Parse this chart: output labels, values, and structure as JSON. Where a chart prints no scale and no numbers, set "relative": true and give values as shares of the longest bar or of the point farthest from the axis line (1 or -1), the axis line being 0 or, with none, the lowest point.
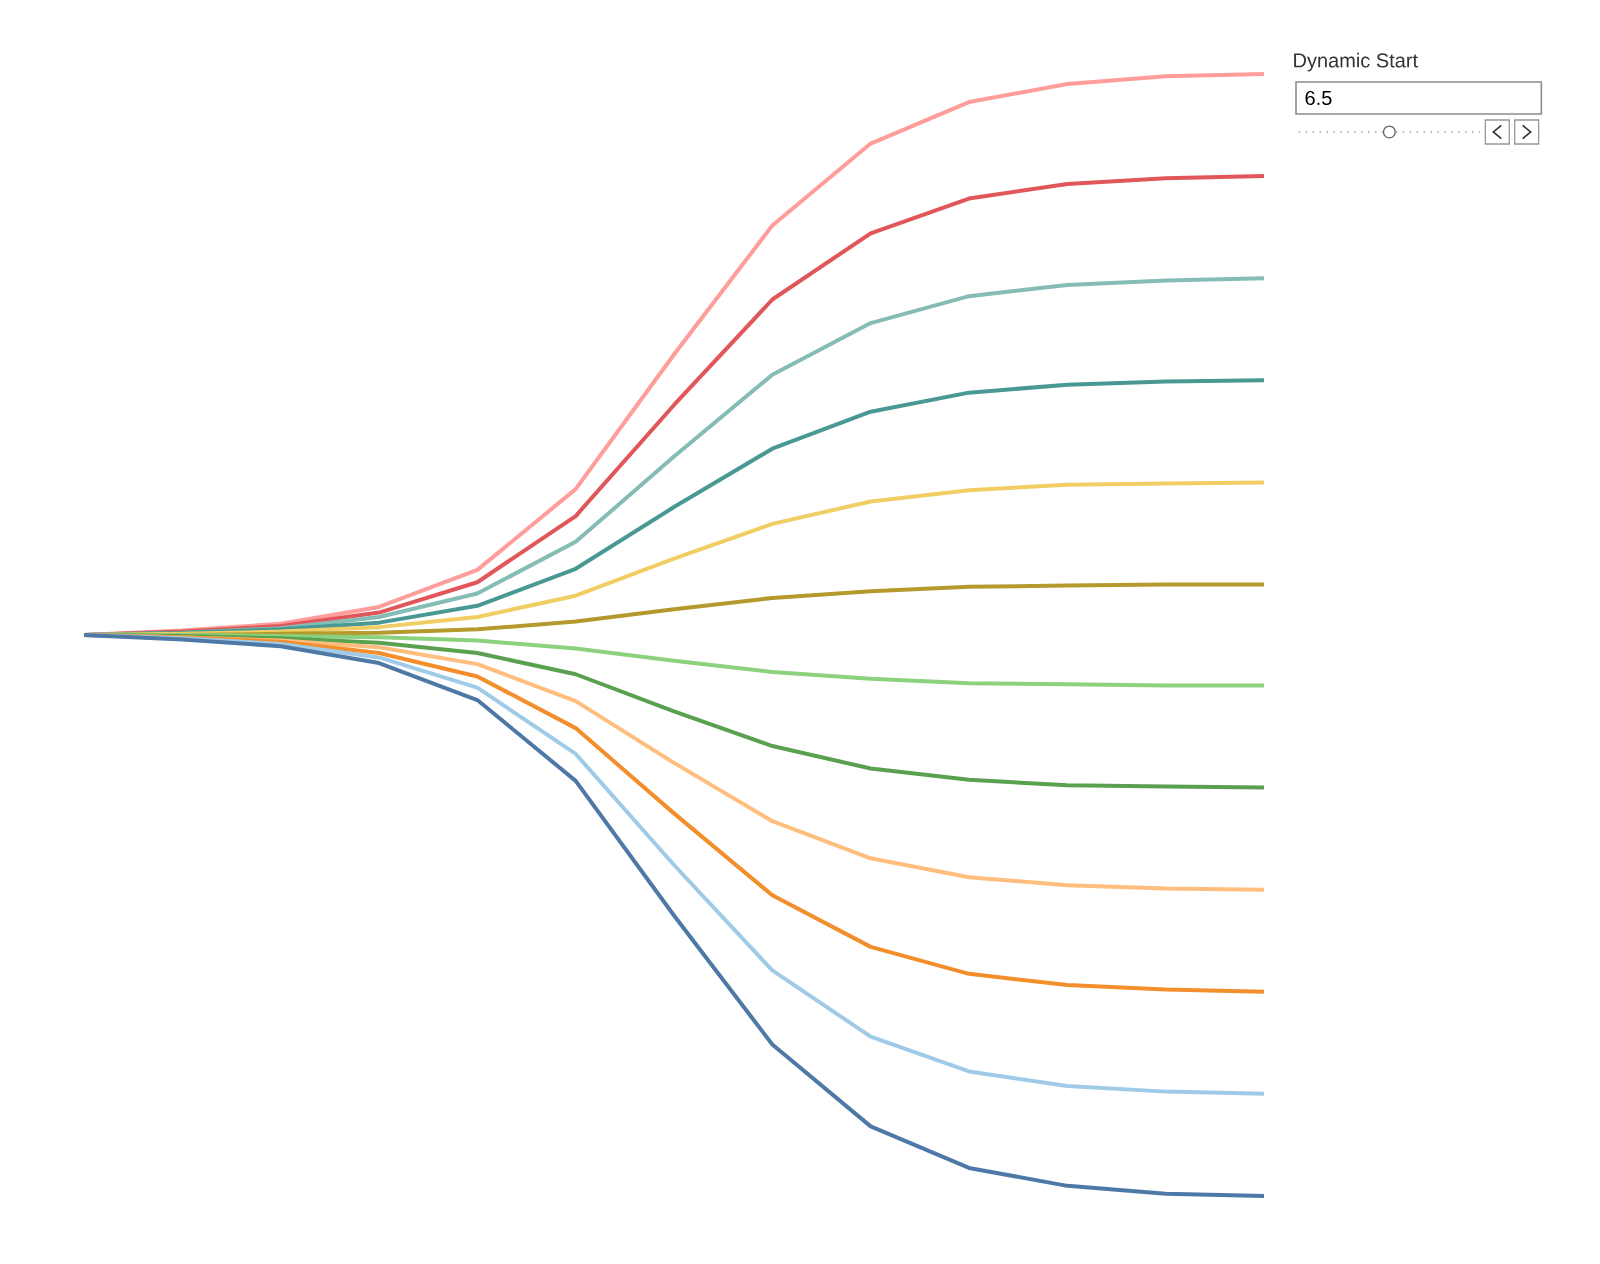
{
  "chart_data": {
    "type": "line",
    "relative": true,
    "annotations": [
      "Dynamic Start",
      "6.5"
    ],
    "categories": [
      null,
      null,
      null,
      null,
      null,
      null,
      null,
      null,
      null,
      null,
      null,
      null,
      null
    ],
    "series": [
      {
        "color": "#ff9d9a",
        "values": [
          0.5,
          0.504,
          0.51,
          0.525,
          0.558,
          0.63,
          0.75,
          0.865,
          0.938,
          0.975,
          0.991,
          0.998,
          1
        ]
      },
      {
        "color": "#e15759",
        "values": [
          0.5,
          0.503,
          0.508,
          0.52,
          0.547,
          0.606,
          0.705,
          0.799,
          0.858,
          0.889,
          0.902,
          0.907,
          0.909
        ]
      },
      {
        "color": "#86bcb6",
        "values": [
          0.5,
          0.502,
          0.506,
          0.516,
          0.537,
          0.583,
          0.659,
          0.732,
          0.778,
          0.802,
          0.812,
          0.816,
          0.818
        ]
      },
      {
        "color": "#499894",
        "values": [
          0.5,
          0.502,
          0.505,
          0.511,
          0.526,
          0.559,
          0.614,
          0.666,
          0.699,
          0.716,
          0.723,
          0.726,
          0.727
        ]
      },
      {
        "color": "#f1ce63",
        "values": [
          0.5,
          0.501,
          0.503,
          0.507,
          0.516,
          0.535,
          0.568,
          0.599,
          0.619,
          0.629,
          0.634,
          0.635,
          0.636
        ]
      },
      {
        "color": "#b6992d",
        "values": [
          0.5,
          0.5,
          0.501,
          0.502,
          0.505,
          0.512,
          0.523,
          0.533,
          0.539,
          0.543,
          0.544,
          0.545,
          0.545
        ]
      },
      {
        "color": "#8cd17d",
        "values": [
          0.5,
          0.5,
          0.499,
          0.498,
          0.495,
          0.488,
          0.477,
          0.467,
          0.461,
          0.457,
          0.456,
          0.455,
          0.455
        ]
      },
      {
        "color": "#59a14f",
        "values": [
          0.5,
          0.499,
          0.497,
          0.493,
          0.484,
          0.465,
          0.432,
          0.401,
          0.381,
          0.371,
          0.366,
          0.365,
          0.364
        ]
      },
      {
        "color": "#ffbe7d",
        "values": [
          0.5,
          0.498,
          0.495,
          0.489,
          0.474,
          0.441,
          0.386,
          0.334,
          0.301,
          0.284,
          0.277,
          0.274,
          0.273
        ]
      },
      {
        "color": "#f28e2b",
        "values": [
          0.5,
          0.498,
          0.494,
          0.484,
          0.463,
          0.417,
          0.341,
          0.268,
          0.222,
          0.198,
          0.188,
          0.184,
          0.182
        ]
      },
      {
        "color": "#a0cbe8",
        "values": [
          0.5,
          0.497,
          0.492,
          0.48,
          0.453,
          0.394,
          0.295,
          0.201,
          0.142,
          0.111,
          0.098,
          0.093,
          0.091
        ]
      },
      {
        "color": "#4e79a7",
        "values": [
          0.5,
          0.496,
          0.49,
          0.475,
          0.442,
          0.37,
          0.25,
          0.135,
          0.062,
          0.025,
          0.009,
          0.002,
          0
        ]
      }
    ]
  }
}
